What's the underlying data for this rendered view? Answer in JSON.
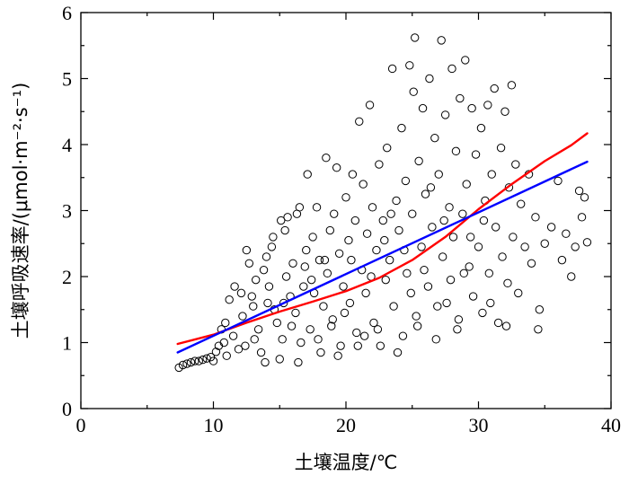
{
  "chart_data": {
    "type": "scatter",
    "title": "",
    "xlabel": "土壤温度/℃",
    "ylabel": "土壤呼吸速率/(μmol·m⁻²·s⁻¹)",
    "xlim": [
      0,
      40
    ],
    "ylim": [
      0,
      6
    ],
    "xticks": [
      0,
      10,
      20,
      30,
      40
    ],
    "yticks": [
      0,
      1,
      2,
      3,
      4,
      5,
      6
    ],
    "grid": false,
    "legend": "none",
    "series": [
      {
        "kind": "scatter",
        "marker": "open-circle",
        "color": "#000000",
        "points": [
          [
            7.4,
            0.62
          ],
          [
            7.7,
            0.66
          ],
          [
            8.0,
            0.68
          ],
          [
            8.3,
            0.7
          ],
          [
            8.6,
            0.72
          ],
          [
            8.9,
            0.72
          ],
          [
            9.2,
            0.74
          ],
          [
            9.5,
            0.76
          ],
          [
            9.8,
            0.78
          ],
          [
            10.0,
            0.72
          ],
          [
            10.2,
            0.86
          ],
          [
            10.4,
            0.95
          ],
          [
            10.6,
            1.2
          ],
          [
            10.9,
            1.3
          ],
          [
            11.2,
            1.65
          ],
          [
            11.6,
            1.85
          ],
          [
            11.5,
            1.1
          ],
          [
            10.8,
            1.0
          ],
          [
            11.9,
            0.9
          ],
          [
            12.2,
            1.4
          ],
          [
            12.5,
            2.4
          ],
          [
            12.7,
            2.2
          ],
          [
            12.9,
            1.7
          ],
          [
            13.0,
            1.55
          ],
          [
            13.2,
            1.95
          ],
          [
            13.4,
            1.2
          ],
          [
            13.6,
            0.85
          ],
          [
            13.8,
            2.1
          ],
          [
            14.0,
            2.3
          ],
          [
            14.2,
            1.85
          ],
          [
            14.4,
            2.45
          ],
          [
            14.5,
            2.6
          ],
          [
            14.6,
            1.5
          ],
          [
            14.8,
            1.3
          ],
          [
            15.0,
            0.75
          ],
          [
            15.1,
            2.85
          ],
          [
            15.3,
            1.6
          ],
          [
            15.5,
            2.0
          ],
          [
            15.6,
            2.9
          ],
          [
            15.8,
            1.7
          ],
          [
            16.0,
            2.2
          ],
          [
            16.2,
            1.45
          ],
          [
            16.3,
            2.95
          ],
          [
            16.5,
            3.05
          ],
          [
            16.6,
            1.0
          ],
          [
            16.8,
            1.85
          ],
          [
            17.0,
            2.4
          ],
          [
            17.1,
            3.55
          ],
          [
            17.3,
            1.2
          ],
          [
            17.5,
            2.6
          ],
          [
            17.6,
            1.75
          ],
          [
            17.8,
            3.05
          ],
          [
            18.0,
            2.25
          ],
          [
            18.1,
            0.85
          ],
          [
            18.3,
            1.55
          ],
          [
            18.5,
            3.8
          ],
          [
            18.6,
            2.05
          ],
          [
            18.8,
            2.7
          ],
          [
            19.0,
            1.35
          ],
          [
            19.1,
            2.95
          ],
          [
            19.3,
            3.65
          ],
          [
            19.5,
            2.35
          ],
          [
            19.6,
            0.95
          ],
          [
            19.8,
            1.85
          ],
          [
            20.0,
            3.2
          ],
          [
            20.2,
            2.55
          ],
          [
            20.3,
            1.6
          ],
          [
            20.5,
            3.55
          ],
          [
            20.7,
            2.85
          ],
          [
            20.8,
            1.15
          ],
          [
            21.0,
            4.35
          ],
          [
            21.2,
            2.1
          ],
          [
            21.3,
            3.4
          ],
          [
            21.5,
            1.75
          ],
          [
            21.6,
            2.65
          ],
          [
            21.8,
            4.6
          ],
          [
            22.0,
            3.05
          ],
          [
            22.1,
            1.3
          ],
          [
            22.3,
            2.4
          ],
          [
            22.5,
            3.7
          ],
          [
            22.6,
            0.95
          ],
          [
            22.8,
            2.85
          ],
          [
            23.0,
            1.95
          ],
          [
            23.1,
            3.95
          ],
          [
            23.3,
            2.25
          ],
          [
            23.5,
            5.15
          ],
          [
            23.6,
            1.55
          ],
          [
            23.8,
            3.15
          ],
          [
            24.0,
            2.7
          ],
          [
            24.2,
            4.25
          ],
          [
            24.3,
            1.1
          ],
          [
            24.5,
            3.45
          ],
          [
            24.6,
            2.05
          ],
          [
            24.8,
            5.2
          ],
          [
            25.0,
            2.95
          ],
          [
            25.1,
            4.8
          ],
          [
            25.2,
            5.62
          ],
          [
            25.3,
            1.4
          ],
          [
            25.5,
            3.75
          ],
          [
            25.7,
            2.45
          ],
          [
            25.8,
            4.55
          ],
          [
            26.0,
            3.25
          ],
          [
            26.2,
            1.85
          ],
          [
            26.3,
            5.0
          ],
          [
            26.5,
            2.75
          ],
          [
            26.7,
            4.1
          ],
          [
            26.8,
            1.05
          ],
          [
            27.0,
            3.55
          ],
          [
            27.2,
            5.58
          ],
          [
            27.3,
            2.3
          ],
          [
            27.5,
            4.45
          ],
          [
            27.6,
            1.6
          ],
          [
            27.8,
            3.05
          ],
          [
            28.0,
            5.15
          ],
          [
            28.1,
            2.6
          ],
          [
            28.3,
            3.9
          ],
          [
            28.5,
            1.35
          ],
          [
            28.6,
            4.7
          ],
          [
            28.8,
            2.95
          ],
          [
            29.0,
            5.28
          ],
          [
            29.1,
            3.4
          ],
          [
            29.3,
            2.15
          ],
          [
            29.5,
            4.55
          ],
          [
            29.6,
            1.7
          ],
          [
            29.8,
            3.85
          ],
          [
            30.0,
            2.45
          ],
          [
            30.2,
            4.25
          ],
          [
            30.3,
            1.45
          ],
          [
            30.5,
            3.15
          ],
          [
            30.7,
            4.6
          ],
          [
            30.8,
            2.05
          ],
          [
            31.0,
            3.55
          ],
          [
            31.2,
            4.85
          ],
          [
            31.3,
            2.75
          ],
          [
            31.5,
            1.3
          ],
          [
            31.7,
            3.95
          ],
          [
            31.8,
            2.3
          ],
          [
            32.0,
            4.5
          ],
          [
            32.2,
            1.9
          ],
          [
            32.3,
            3.35
          ],
          [
            32.5,
            4.9
          ],
          [
            32.6,
            2.6
          ],
          [
            32.8,
            3.7
          ],
          [
            33.0,
            1.75
          ],
          [
            33.2,
            3.1
          ],
          [
            33.5,
            2.45
          ],
          [
            33.8,
            3.55
          ],
          [
            34.0,
            2.2
          ],
          [
            34.3,
            2.9
          ],
          [
            34.6,
            1.5
          ],
          [
            35.0,
            2.5
          ],
          [
            35.5,
            2.75
          ],
          [
            36.0,
            3.45
          ],
          [
            36.3,
            2.25
          ],
          [
            36.6,
            2.65
          ],
          [
            37.0,
            2.0
          ],
          [
            37.3,
            2.45
          ],
          [
            37.6,
            3.3
          ],
          [
            38.0,
            3.2
          ],
          [
            38.2,
            2.52
          ],
          [
            37.8,
            2.9
          ],
          [
            15.4,
            2.7
          ],
          [
            16.9,
            2.15
          ],
          [
            18.4,
            2.25
          ],
          [
            19.9,
            1.45
          ],
          [
            21.4,
            1.1
          ],
          [
            22.9,
            2.55
          ],
          [
            24.4,
            2.4
          ],
          [
            25.9,
            2.1
          ],
          [
            27.4,
            2.85
          ],
          [
            28.9,
            2.05
          ],
          [
            30.4,
            2.85
          ],
          [
            12.1,
            1.75
          ],
          [
            13.1,
            1.05
          ],
          [
            14.1,
            1.6
          ],
          [
            15.9,
            1.25
          ],
          [
            17.4,
            1.95
          ],
          [
            18.9,
            1.25
          ],
          [
            20.4,
            2.25
          ],
          [
            21.9,
            2.0
          ],
          [
            23.4,
            2.95
          ],
          [
            24.9,
            1.75
          ],
          [
            26.4,
            3.35
          ],
          [
            27.9,
            1.95
          ],
          [
            29.4,
            2.6
          ],
          [
            11.0,
            0.8
          ],
          [
            12.4,
            0.95
          ],
          [
            13.9,
            0.7
          ],
          [
            15.2,
            1.05
          ],
          [
            16.4,
            0.7
          ],
          [
            17.9,
            1.05
          ],
          [
            19.4,
            0.8
          ],
          [
            20.9,
            0.95
          ],
          [
            22.4,
            1.2
          ],
          [
            23.9,
            0.85
          ],
          [
            25.4,
            1.25
          ],
          [
            26.9,
            1.55
          ],
          [
            28.4,
            1.2
          ],
          [
            30.9,
            1.6
          ],
          [
            32.1,
            1.25
          ],
          [
            34.5,
            1.2
          ]
        ]
      },
      {
        "kind": "line",
        "name": "",
        "color": "#ff0000",
        "x": [
          7.3,
          10,
          12.5,
          15,
          17.5,
          20,
          22.5,
          25,
          27.5,
          30,
          32.5,
          35,
          37,
          38.2
        ],
        "y": [
          0.98,
          1.12,
          1.3,
          1.47,
          1.62,
          1.78,
          1.98,
          2.25,
          2.6,
          3.02,
          3.4,
          3.75,
          3.99,
          4.17
        ]
      },
      {
        "kind": "line",
        "name": "",
        "color": "#0000ff",
        "x": [
          7.3,
          38.2
        ],
        "y": [
          0.85,
          3.74
        ]
      }
    ]
  }
}
